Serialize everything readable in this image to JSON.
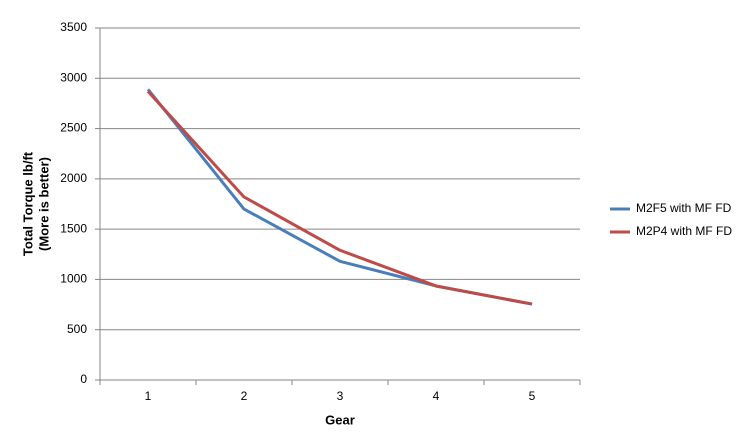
{
  "chart_data": {
    "type": "line",
    "xlabel": "Gear",
    "ylabel": [
      "Total Torque lb/ft",
      "(More is better)"
    ],
    "categories": [
      "1",
      "2",
      "3",
      "4",
      "5"
    ],
    "series": [
      {
        "name": "M2F5 with MF FD",
        "color": "#4a7ebb",
        "values": [
          2890,
          1700,
          1180,
          935,
          755
        ]
      },
      {
        "name": "M2P4 with MF FD",
        "color": "#be4b48",
        "values": [
          2870,
          1820,
          1290,
          935,
          755
        ]
      }
    ],
    "ylim": [
      0,
      3500
    ],
    "yticks": [
      0,
      500,
      1000,
      1500,
      2000,
      2500,
      3000,
      3500
    ],
    "grid": true,
    "legend": "right"
  }
}
